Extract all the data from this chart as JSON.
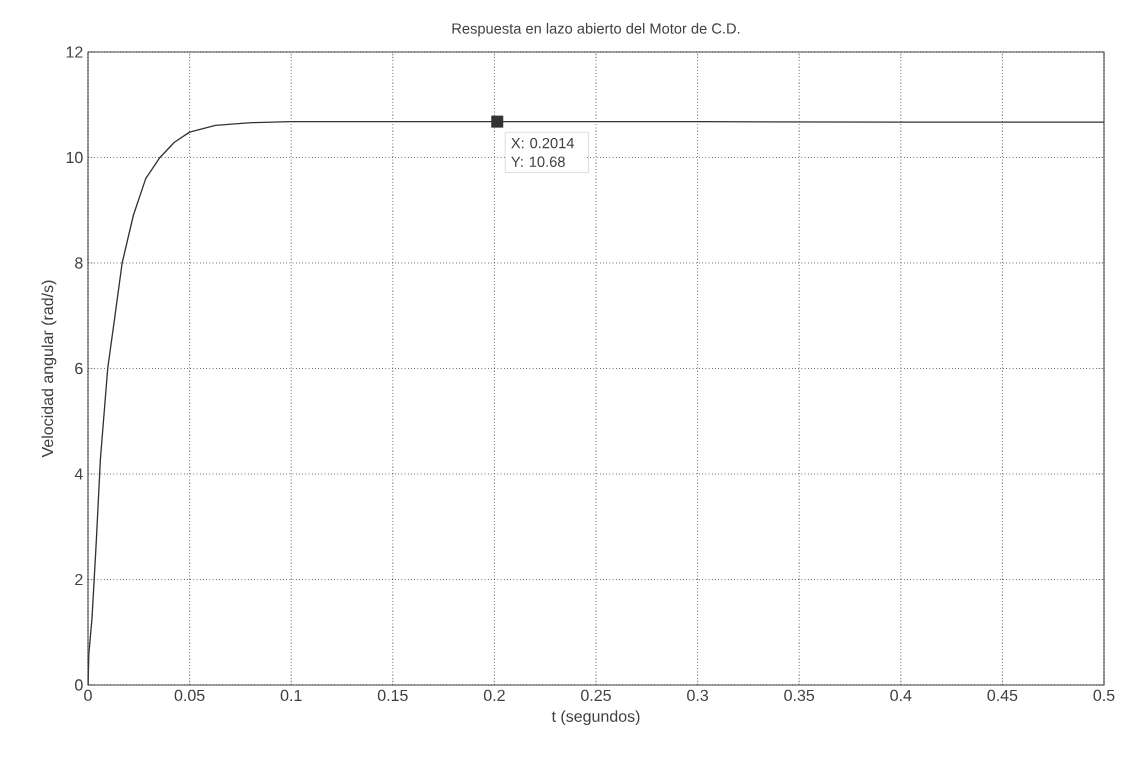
{
  "chart_data": {
    "type": "line",
    "title": "Respuesta en lazo abierto del Motor de C.D.",
    "xlabel": "t (segundos)",
    "ylabel": "Velocidad angular (rad/s)",
    "x": [
      0,
      0.0004,
      0.002,
      0.0041,
      0.0061,
      0.0097,
      0.0132,
      0.0168,
      0.0223,
      0.0284,
      0.0354,
      0.0425,
      0.05,
      0.0627,
      0.0805,
      0.1,
      0.2014,
      0.3,
      0.4,
      0.5
    ],
    "series": [
      {
        "color": "#333333",
        "values": [
          0,
          0.58,
          1.28,
          2.74,
          4.28,
          6,
          6.98,
          8,
          8.9,
          9.6,
          10,
          10.29,
          10.48,
          10.61,
          10.66,
          10.68,
          10.68,
          10.68,
          10.67,
          10.67
        ]
      }
    ],
    "xlim": [
      0,
      0.5
    ],
    "ylim": [
      0,
      12
    ],
    "xticks": [
      0,
      0.05,
      0.1,
      0.15,
      0.2,
      0.25,
      0.3,
      0.35,
      0.4,
      0.45,
      0.5
    ],
    "yticks": [
      0,
      2,
      4,
      6,
      8,
      10,
      12
    ],
    "grid": true,
    "marker": "none",
    "line_style": "solid",
    "annotations": [
      {
        "text": "X: 0.2014",
        "x": 0.2014,
        "y": 10.68
      },
      {
        "text": "Y: 10.68",
        "x": 0.2014,
        "y": 10.68
      }
    ]
  }
}
